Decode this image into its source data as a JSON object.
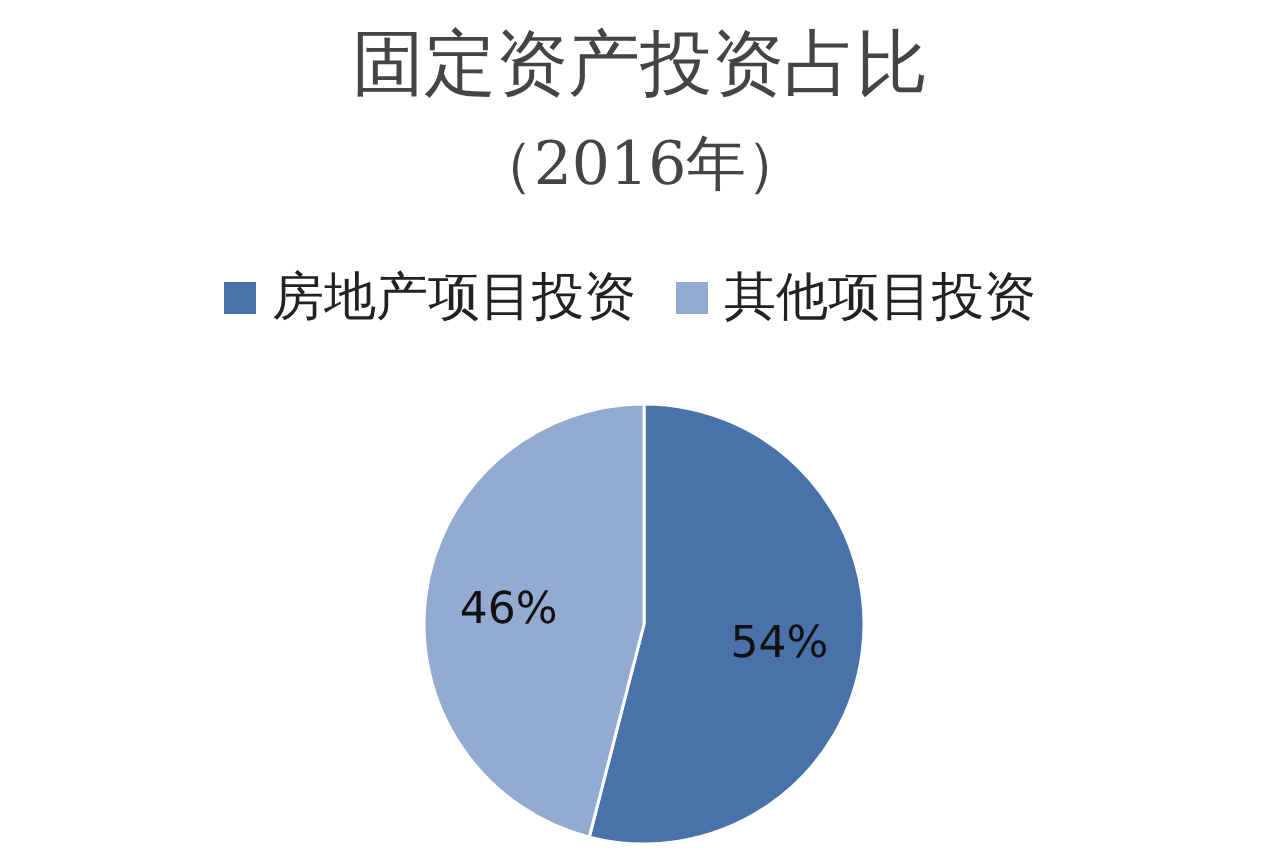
{
  "chart_data": {
    "type": "pie",
    "title": "固定资产投资占比",
    "subtitle": "（2016年）",
    "categories": [
      "房地产项目投资",
      "其他项目投资"
    ],
    "values": [
      54,
      46
    ],
    "value_labels": [
      "54%",
      "46%"
    ],
    "colors": [
      "#4a72aa",
      "#94abd1"
    ],
    "legend": "top"
  }
}
